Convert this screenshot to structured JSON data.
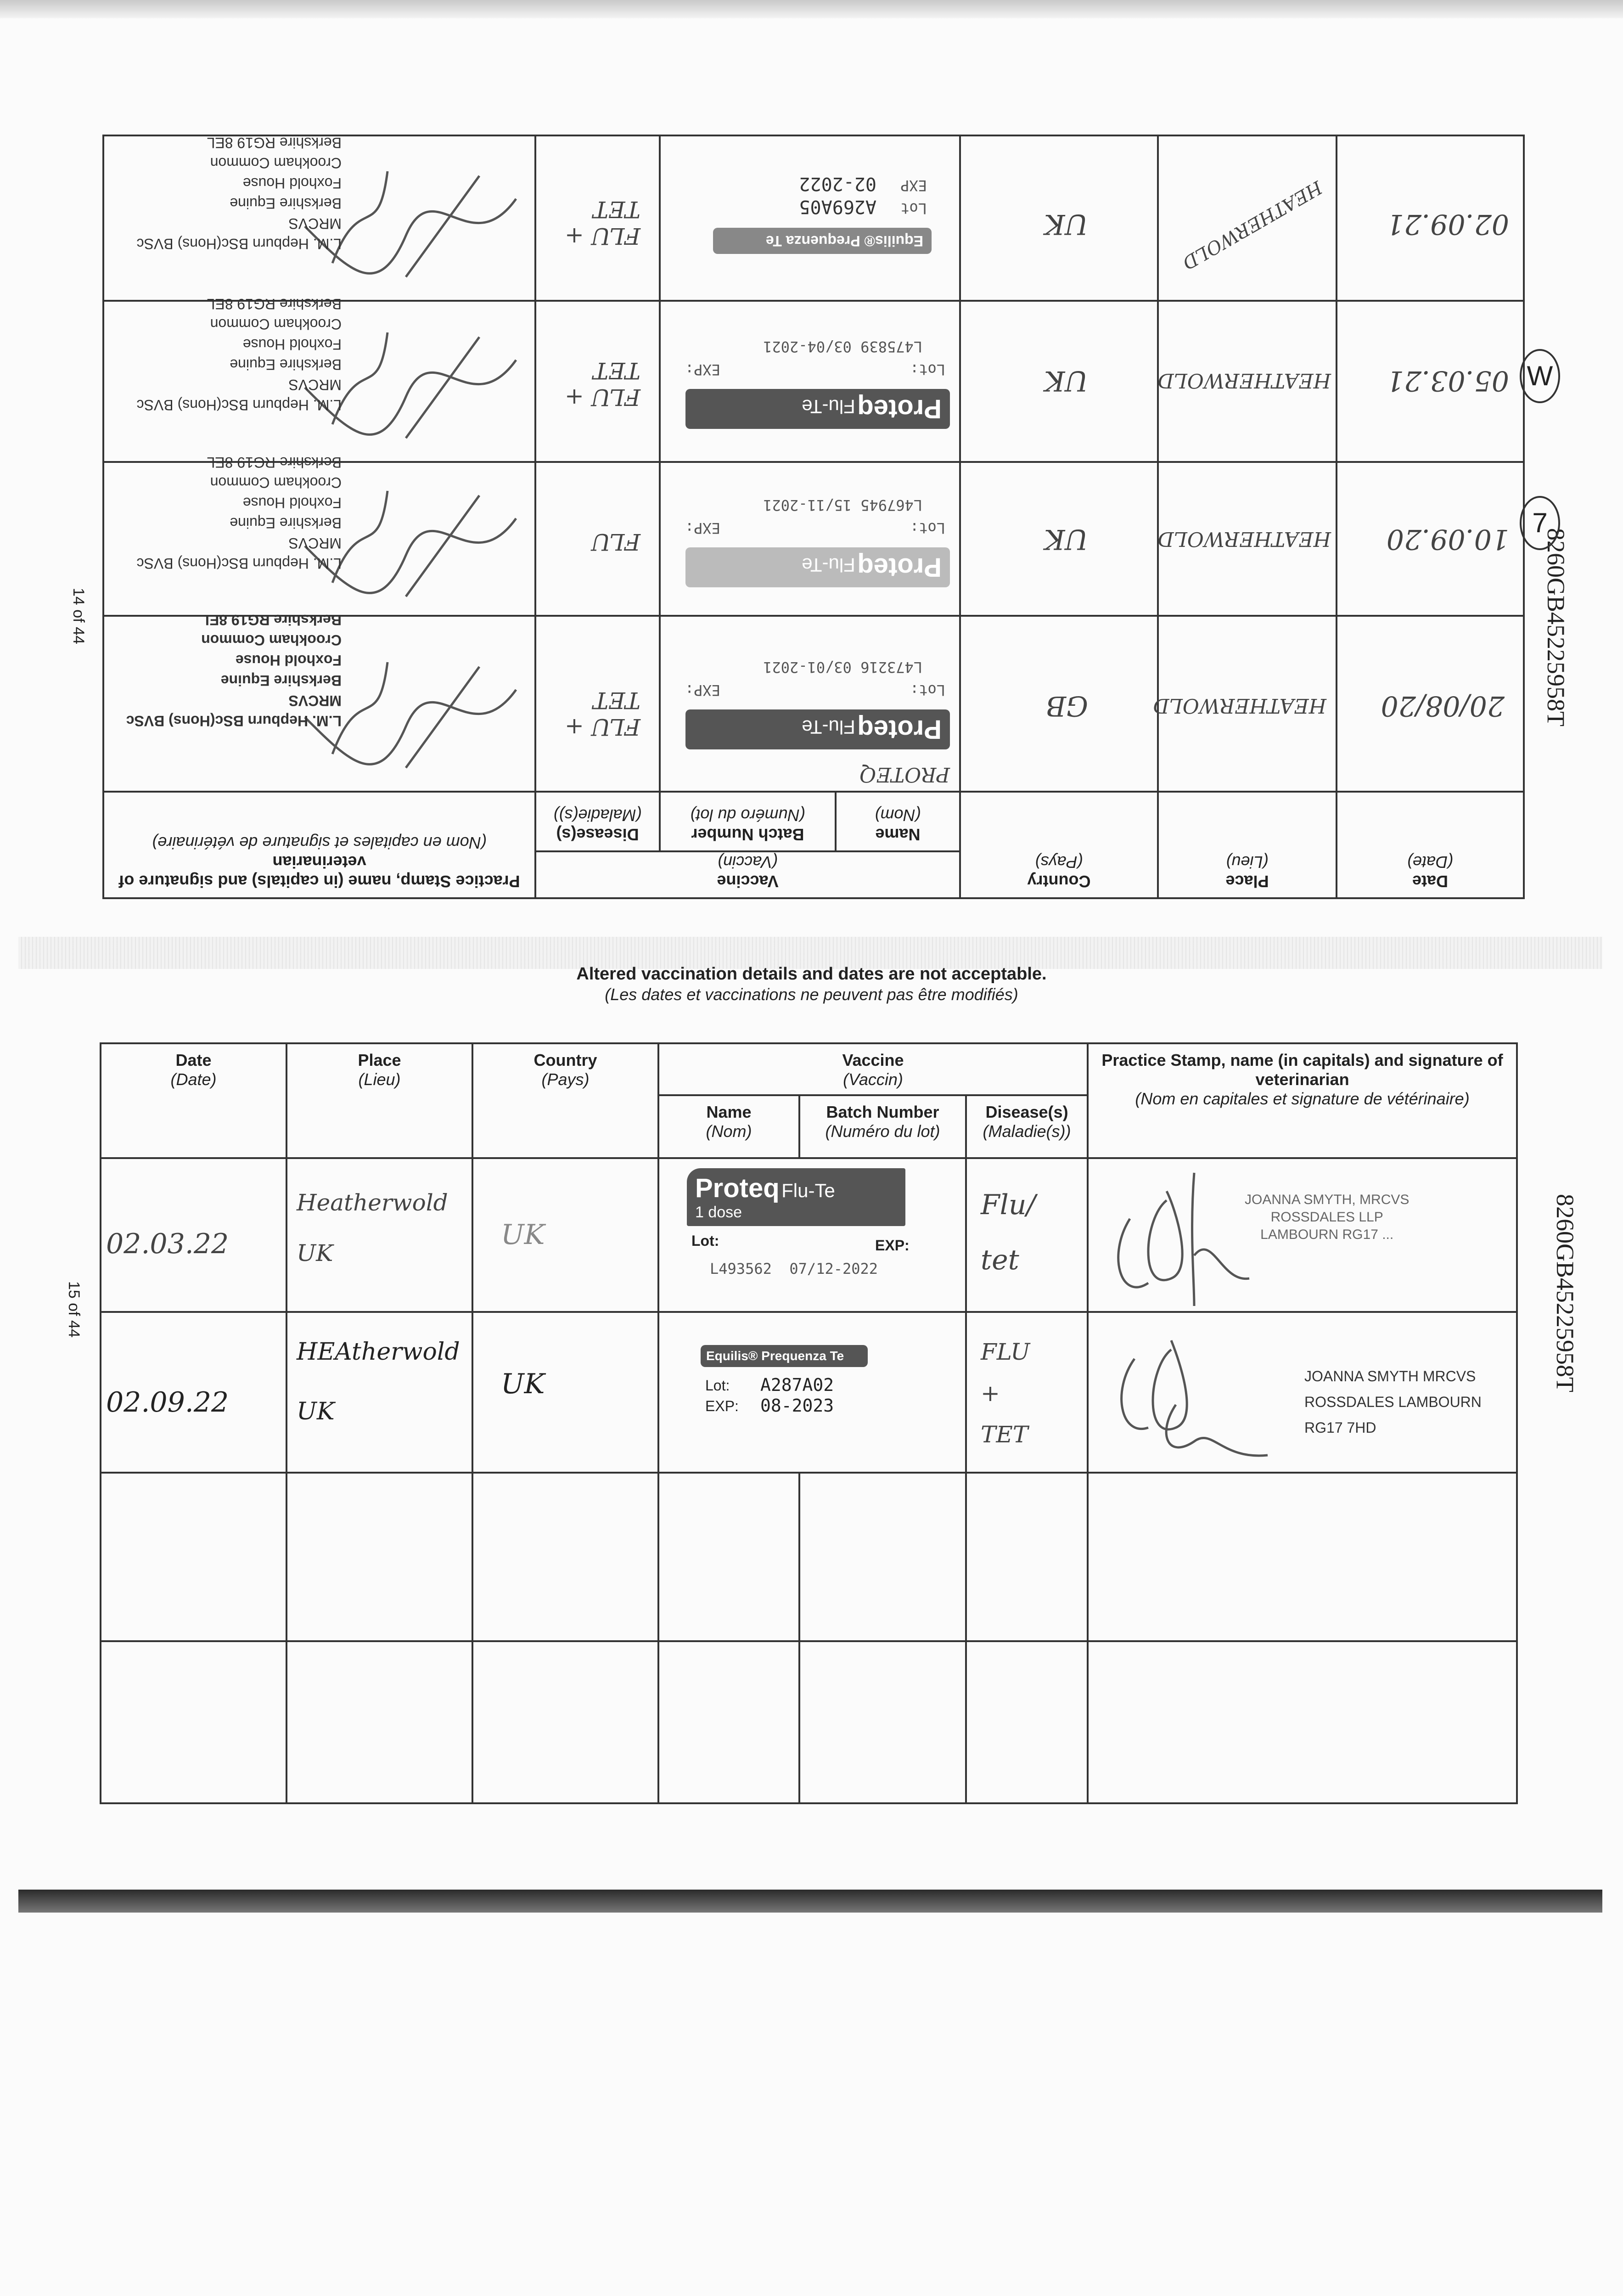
{
  "headers": {
    "date": "Date",
    "date_fr": "(Date)",
    "place": "Place",
    "place_fr": "(Lieu)",
    "country": "Country",
    "country_fr": "(Pays)",
    "vaccine": "Vaccine",
    "vaccine_fr": "(Vaccin)",
    "name": "Name",
    "name_fr": "(Nom)",
    "batch": "Batch Number",
    "batch_fr": "(Numéro du lot)",
    "disease": "Disease(s)",
    "disease_fr": "(Maladie(s))",
    "practice": "Practice Stamp, name (in capitals) and signature of veterinarian",
    "practice_fr": "(Nom en capitales et signature de vétérinaire)"
  },
  "page14": {
    "page_label": "14 of 44",
    "passport_id": "8260GB45225958T",
    "circled_marks": [
      "W",
      "7"
    ],
    "stamp": [
      "L.M. Hepburn BSc(Hons) BVSc MRCVS",
      "Berkshire Equine",
      "Foxhold House",
      "Crookham Common",
      "Berkshire RG19 8EL"
    ],
    "rows": [
      {
        "date": "20/08/20",
        "place": "HEATHERWOLD",
        "country": "GB",
        "vaccine_brand": "Proteq",
        "vaccine_product": "Flu-Te",
        "lot_label": "Lot:",
        "exp_label": "EXP:",
        "batch": "L473216 03/01-2021",
        "note": "PROTEQ",
        "disease": "FLU + TET"
      },
      {
        "date": "10.09.20",
        "place": "HEATHERWOLD",
        "country": "UK",
        "vaccine_brand": "Proteq",
        "vaccine_product": "Flu-Te",
        "lot_label": "Lot:",
        "exp_label": "EXP:",
        "batch": "L467945 15/11-2021",
        "disease": "FLU"
      },
      {
        "date": "05.03.21",
        "place": "HEATHERWOLD",
        "country": "UK",
        "vaccine_brand": "Proteq",
        "vaccine_product": "Flu-Te",
        "lot_label": "Lot:",
        "exp_label": "EXP:",
        "batch": "L475839 03/04-2021",
        "disease": "FLU + TET"
      },
      {
        "date": "02.09.21",
        "place": "HEATHERWOLD",
        "country": "UK",
        "vaccine_brand": "Equilis® Prequenza Te",
        "lot_label": "Lot",
        "exp_label": "EXP",
        "batch": "A269A05",
        "expiry": "02-2022",
        "disease": "FLU + TET"
      }
    ]
  },
  "page15": {
    "notice": "Altered vaccination details and dates are not acceptable.",
    "notice_fr": "(Les dates et vaccinations ne peuvent pas être modifiés)",
    "page_label": "15 of 44",
    "passport_id": "8260GB45225958T",
    "rows": [
      {
        "date": "02.03.22",
        "place": "Heatherwold UK",
        "country": "UK",
        "vaccine_brand": "Proteq",
        "vaccine_product": "Flu-Te",
        "dose": "1 dose",
        "lot_label": "Lot:",
        "exp_label": "EXP:",
        "batch": "L493562  07/12-2022",
        "disease": "Flu/ tet",
        "stamp": [
          "JOANNA SMYTH, MRCVS",
          "ROSSDALES LLP",
          "LAMBOURN RG17 ..."
        ]
      },
      {
        "date": "02.09.22",
        "place": "HEAtherwold UK",
        "country": "UK",
        "vaccine_brand": "Equilis® Prequenza Te",
        "lot_label": "Lot:",
        "lot": "A287A02",
        "exp_label": "EXP:",
        "expiry": "08-2023",
        "disease": "FLU + TET",
        "stamp": [
          "JOANNA SMYTH MRCVS",
          "ROSSDALES LAMBOURN",
          "RG17 7HD"
        ]
      }
    ]
  }
}
